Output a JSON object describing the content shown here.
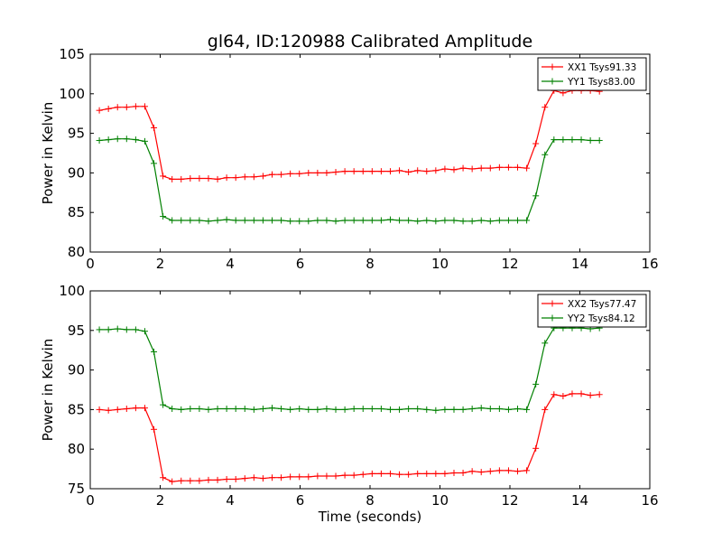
{
  "chart_data": [
    {
      "type": "line",
      "title": "gl64, ID:120988 Calibrated Amplitude",
      "xlabel": "",
      "ylabel": "Power in Kelvin",
      "xlim": [
        0,
        16
      ],
      "ylim": [
        80,
        105
      ],
      "xticks": [
        0,
        2,
        4,
        6,
        8,
        10,
        12,
        14,
        16
      ],
      "yticks": [
        80,
        85,
        90,
        95,
        100,
        105
      ],
      "legend_position": "top-right",
      "series": [
        {
          "name": "XX1 Tsys91.33",
          "color": "#ff0000",
          "x": [
            0.26,
            0.52,
            0.78,
            1.04,
            1.3,
            1.56,
            1.82,
            2.08,
            2.34,
            2.6,
            2.86,
            3.12,
            3.38,
            3.64,
            3.9,
            4.16,
            4.42,
            4.68,
            4.94,
            5.2,
            5.46,
            5.72,
            5.98,
            6.24,
            6.5,
            6.76,
            7.02,
            7.28,
            7.54,
            7.8,
            8.06,
            8.32,
            8.58,
            8.84,
            9.1,
            9.36,
            9.62,
            9.88,
            10.14,
            10.4,
            10.66,
            10.92,
            11.18,
            11.44,
            11.7,
            11.96,
            12.22,
            12.48,
            12.74,
            13.0,
            13.26,
            13.52,
            13.78,
            14.04,
            14.3,
            14.56
          ],
          "y": [
            97.9,
            98.1,
            98.3,
            98.3,
            98.4,
            98.4,
            95.7,
            89.6,
            89.2,
            89.2,
            89.3,
            89.3,
            89.3,
            89.2,
            89.4,
            89.4,
            89.5,
            89.5,
            89.6,
            89.8,
            89.8,
            89.9,
            89.9,
            90.0,
            90.0,
            90.0,
            90.1,
            90.2,
            90.2,
            90.2,
            90.2,
            90.2,
            90.2,
            90.3,
            90.1,
            90.3,
            90.2,
            90.3,
            90.5,
            90.4,
            90.6,
            90.5,
            90.6,
            90.6,
            90.7,
            90.7,
            90.7,
            90.6,
            93.7,
            98.3,
            100.4,
            100.1,
            100.4,
            100.4,
            100.4,
            100.3
          ]
        },
        {
          "name": "YY1 Tsys83.00",
          "color": "#008000",
          "x": [
            0.26,
            0.52,
            0.78,
            1.04,
            1.3,
            1.56,
            1.82,
            2.08,
            2.34,
            2.6,
            2.86,
            3.12,
            3.38,
            3.64,
            3.9,
            4.16,
            4.42,
            4.68,
            4.94,
            5.2,
            5.46,
            5.72,
            5.98,
            6.24,
            6.5,
            6.76,
            7.02,
            7.28,
            7.54,
            7.8,
            8.06,
            8.32,
            8.58,
            8.84,
            9.1,
            9.36,
            9.62,
            9.88,
            10.14,
            10.4,
            10.66,
            10.92,
            11.18,
            11.44,
            11.7,
            11.96,
            12.22,
            12.48,
            12.74,
            13.0,
            13.26,
            13.52,
            13.78,
            14.04,
            14.3,
            14.56
          ],
          "y": [
            94.1,
            94.2,
            94.3,
            94.3,
            94.2,
            94.0,
            91.2,
            84.5,
            84.0,
            84.0,
            84.0,
            84.0,
            83.9,
            84.0,
            84.1,
            84.0,
            84.0,
            84.0,
            84.0,
            84.0,
            84.0,
            83.9,
            83.9,
            83.9,
            84.0,
            84.0,
            83.9,
            84.0,
            84.0,
            84.0,
            84.0,
            84.0,
            84.1,
            84.0,
            84.0,
            83.9,
            84.0,
            83.9,
            84.0,
            84.0,
            83.9,
            83.9,
            84.0,
            83.9,
            84.0,
            84.0,
            84.0,
            84.0,
            87.1,
            92.3,
            94.2,
            94.2,
            94.2,
            94.2,
            94.1,
            94.1
          ]
        }
      ]
    },
    {
      "type": "line",
      "title": "",
      "xlabel": "Time (seconds)",
      "ylabel": "Power in Kelvin",
      "xlim": [
        0,
        16
      ],
      "ylim": [
        75,
        100
      ],
      "xticks": [
        0,
        2,
        4,
        6,
        8,
        10,
        12,
        14,
        16
      ],
      "yticks": [
        75,
        80,
        85,
        90,
        95,
        100
      ],
      "legend_position": "top-right",
      "series": [
        {
          "name": "XX2 Tsys77.47",
          "color": "#ff0000",
          "x": [
            0.26,
            0.52,
            0.78,
            1.04,
            1.3,
            1.56,
            1.82,
            2.08,
            2.34,
            2.6,
            2.86,
            3.12,
            3.38,
            3.64,
            3.9,
            4.16,
            4.42,
            4.68,
            4.94,
            5.2,
            5.46,
            5.72,
            5.98,
            6.24,
            6.5,
            6.76,
            7.02,
            7.28,
            7.54,
            7.8,
            8.06,
            8.32,
            8.58,
            8.84,
            9.1,
            9.36,
            9.62,
            9.88,
            10.14,
            10.4,
            10.66,
            10.92,
            11.18,
            11.44,
            11.7,
            11.96,
            12.22,
            12.48,
            12.74,
            13.0,
            13.26,
            13.52,
            13.78,
            14.04,
            14.3,
            14.56
          ],
          "y": [
            85.0,
            84.9,
            85.0,
            85.1,
            85.2,
            85.2,
            82.5,
            76.4,
            75.9,
            76.0,
            76.0,
            76.0,
            76.1,
            76.1,
            76.2,
            76.2,
            76.3,
            76.4,
            76.3,
            76.4,
            76.4,
            76.5,
            76.5,
            76.5,
            76.6,
            76.6,
            76.6,
            76.7,
            76.7,
            76.8,
            76.9,
            76.9,
            76.9,
            76.8,
            76.8,
            76.9,
            76.9,
            76.9,
            76.9,
            77.0,
            77.0,
            77.2,
            77.1,
            77.2,
            77.3,
            77.3,
            77.2,
            77.3,
            80.1,
            85.0,
            86.9,
            86.7,
            87.0,
            87.0,
            86.8,
            86.9
          ]
        },
        {
          "name": "YY2 Tsys84.12",
          "color": "#008000",
          "x": [
            0.26,
            0.52,
            0.78,
            1.04,
            1.3,
            1.56,
            1.82,
            2.08,
            2.34,
            2.6,
            2.86,
            3.12,
            3.38,
            3.64,
            3.9,
            4.16,
            4.42,
            4.68,
            4.94,
            5.2,
            5.46,
            5.72,
            5.98,
            6.24,
            6.5,
            6.76,
            7.02,
            7.28,
            7.54,
            7.8,
            8.06,
            8.32,
            8.58,
            8.84,
            9.1,
            9.36,
            9.62,
            9.88,
            10.14,
            10.4,
            10.66,
            10.92,
            11.18,
            11.44,
            11.7,
            11.96,
            12.22,
            12.48,
            12.74,
            13.0,
            13.26,
            13.52,
            13.78,
            14.04,
            14.3,
            14.56
          ],
          "y": [
            95.1,
            95.1,
            95.2,
            95.1,
            95.1,
            94.9,
            92.3,
            85.6,
            85.1,
            85.0,
            85.1,
            85.1,
            85.0,
            85.1,
            85.1,
            85.1,
            85.1,
            85.0,
            85.1,
            85.2,
            85.1,
            85.0,
            85.1,
            85.0,
            85.0,
            85.1,
            85.0,
            85.0,
            85.1,
            85.1,
            85.1,
            85.1,
            85.0,
            85.0,
            85.1,
            85.1,
            85.0,
            84.9,
            85.0,
            85.0,
            85.0,
            85.1,
            85.2,
            85.1,
            85.1,
            85.0,
            85.1,
            85.0,
            88.2,
            93.4,
            95.3,
            95.3,
            95.3,
            95.3,
            95.2,
            95.3
          ]
        }
      ]
    }
  ]
}
